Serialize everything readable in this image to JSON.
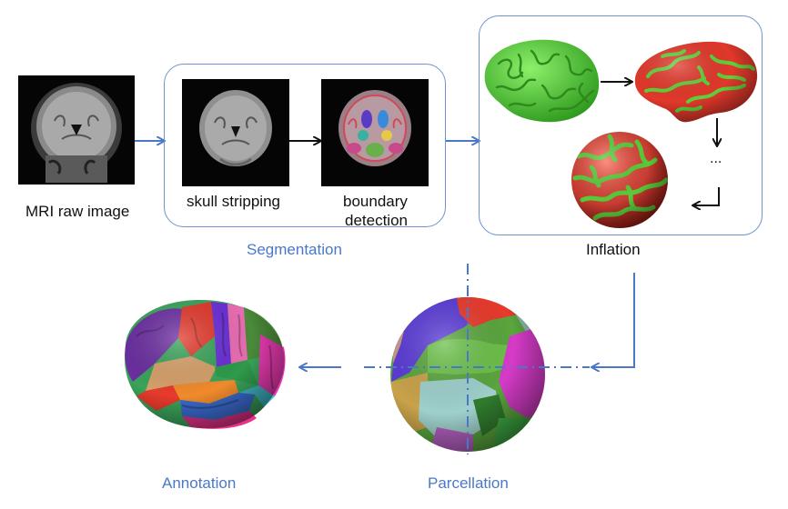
{
  "title": "",
  "steps": {
    "raw": "MRI raw image",
    "skull": "skull stripping",
    "boundary_line1": "boundary",
    "boundary_line2": "detection",
    "segmentation": "Segmentation",
    "inflation": "Inflation",
    "ellipsis": "...",
    "parcellation": "Parcellation",
    "annotation": "Annotation"
  },
  "colors": {
    "accent": "#4a78c9",
    "brain_green": "#5fd13a",
    "brain_red": "#e8392c"
  }
}
